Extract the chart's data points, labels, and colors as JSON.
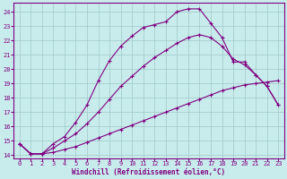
{
  "xlabel": "Windchill (Refroidissement éolien,°C)",
  "background_color": "#c8ecec",
  "grid_color": "#a0c8c8",
  "line_color": "#800080",
  "xlim": [
    -0.5,
    23.5
  ],
  "ylim": [
    13.8,
    24.6
  ],
  "xticks": [
    0,
    1,
    2,
    3,
    4,
    5,
    6,
    7,
    8,
    9,
    10,
    11,
    12,
    13,
    14,
    15,
    16,
    17,
    18,
    19,
    20,
    21,
    22,
    23
  ],
  "yticks": [
    14,
    15,
    16,
    17,
    18,
    19,
    20,
    21,
    22,
    23,
    24
  ],
  "line1_x": [
    0,
    1,
    2,
    3,
    4,
    5,
    6,
    7,
    8,
    9,
    10,
    11,
    12,
    13,
    14,
    15,
    16,
    17,
    18,
    19,
    20,
    21,
    22,
    23
  ],
  "line1_y": [
    14.8,
    14.1,
    14.1,
    14.2,
    14.4,
    14.6,
    14.9,
    15.2,
    15.5,
    15.8,
    16.1,
    16.4,
    16.7,
    17.0,
    17.3,
    17.6,
    17.9,
    18.2,
    18.5,
    18.7,
    18.9,
    19.0,
    19.1,
    19.2
  ],
  "line2_x": [
    0,
    1,
    2,
    3,
    4,
    5,
    6,
    7,
    8,
    9,
    10,
    11,
    12,
    13,
    14,
    15,
    16,
    17,
    18,
    19,
    20,
    21,
    22,
    23
  ],
  "line2_y": [
    14.8,
    14.1,
    14.1,
    14.5,
    15.0,
    15.5,
    16.2,
    17.0,
    17.9,
    18.8,
    19.5,
    20.2,
    20.8,
    21.3,
    21.8,
    22.2,
    22.4,
    22.2,
    21.6,
    20.7,
    20.3,
    19.6,
    18.8,
    17.5
  ],
  "line3_x": [
    0,
    1,
    2,
    3,
    4,
    5,
    6,
    7,
    8,
    9,
    10,
    11,
    12,
    13,
    14,
    15,
    16,
    17,
    18,
    19,
    20,
    21,
    22,
    23
  ],
  "line3_y": [
    14.8,
    14.1,
    14.1,
    14.8,
    15.3,
    16.3,
    17.5,
    19.2,
    20.6,
    21.6,
    22.3,
    22.9,
    23.1,
    23.3,
    24.0,
    24.2,
    24.2,
    23.2,
    22.2,
    20.5,
    20.5,
    19.6,
    18.8,
    17.5
  ]
}
